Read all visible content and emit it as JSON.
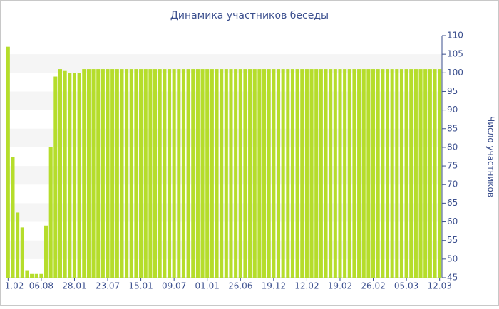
{
  "chart_data": {
    "type": "bar",
    "title": "Динамика участников беседы",
    "y_label": "Число участников",
    "categories": [
      "1.02",
      null,
      null,
      null,
      null,
      null,
      null,
      "06.08",
      null,
      null,
      null,
      null,
      null,
      null,
      "28.01",
      null,
      null,
      null,
      null,
      null,
      null,
      "23.07",
      null,
      null,
      null,
      null,
      null,
      null,
      "15.01",
      null,
      null,
      null,
      null,
      null,
      null,
      "09.07",
      null,
      null,
      null,
      null,
      null,
      null,
      "01.01",
      null,
      null,
      null,
      null,
      null,
      null,
      "26.06",
      null,
      null,
      null,
      null,
      null,
      null,
      "19.12",
      null,
      null,
      null,
      null,
      null,
      null,
      "12.02",
      null,
      null,
      null,
      null,
      null,
      null,
      "19.02",
      null,
      null,
      null,
      null,
      null,
      null,
      "26.02",
      null,
      null,
      null,
      null,
      null,
      null,
      "05.03",
      null,
      null,
      null,
      null,
      null,
      null,
      "12.03"
    ],
    "values": [
      107,
      77.5,
      62.5,
      58.5,
      47,
      46,
      46,
      46,
      59,
      80,
      99,
      101,
      100.5,
      100,
      100,
      100,
      101,
      101,
      101,
      101,
      101,
      101,
      101,
      101,
      101,
      101,
      101,
      101,
      101,
      101,
      101,
      101,
      101,
      101,
      101,
      101,
      101,
      101,
      101,
      101,
      101,
      101,
      101,
      101,
      101,
      101,
      101,
      101,
      101,
      101,
      101,
      101,
      101,
      101,
      101,
      101,
      101,
      101,
      101,
      101,
      101,
      101,
      101,
      101,
      101,
      101,
      101,
      101,
      101,
      101,
      101,
      101,
      101,
      101,
      101,
      101,
      101,
      101,
      101,
      101,
      101,
      101,
      101,
      101,
      101,
      101,
      101,
      101,
      101,
      101,
      101,
      101
    ],
    "color": "#b5dd2b",
    "ylim": [
      45,
      110
    ],
    "yticks": [
      45,
      50,
      55,
      60,
      65,
      70,
      75,
      80,
      85,
      90,
      95,
      100,
      105,
      110
    ],
    "grid": true
  }
}
